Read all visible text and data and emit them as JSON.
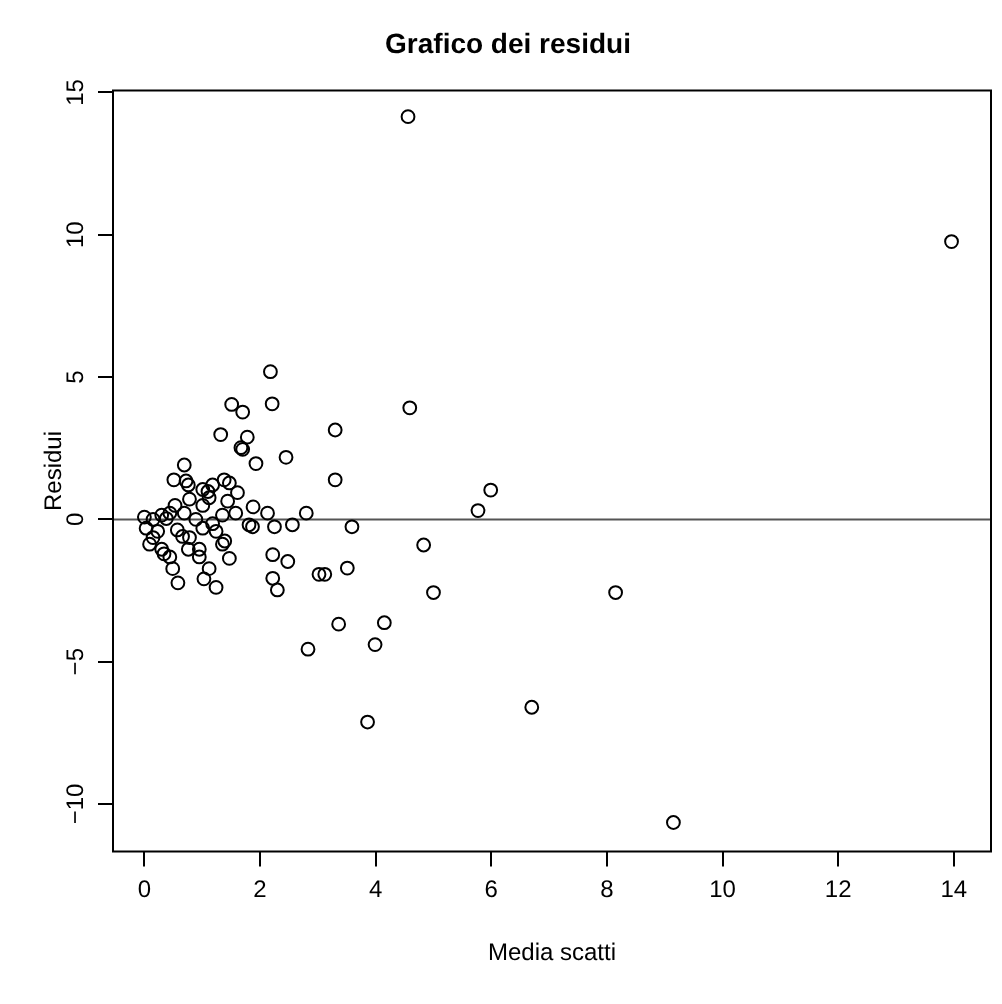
{
  "chart_data": {
    "type": "scatter",
    "title": "Grafico dei residui",
    "xlabel": "Media scatti",
    "ylabel": "Residui",
    "xlim": [
      -0.56,
      14.66
    ],
    "ylim": [
      -11.7,
      15.1
    ],
    "xticks": [
      0,
      2,
      4,
      6,
      8,
      10,
      12,
      14
    ],
    "yticks": [
      -10,
      -5,
      0,
      5,
      10,
      15
    ],
    "grid": false,
    "legend": false,
    "marker": "circle",
    "ref_lines": [
      {
        "axis": "y",
        "value": 0,
        "color": "#555555"
      }
    ],
    "series": [
      {
        "color": "#000000",
        "x": [
          4.56,
          13.96,
          4.59,
          3.3,
          3.3,
          5.99,
          5.77,
          3.59,
          4.83,
          3.51,
          5.0,
          8.15,
          3.36,
          4.15,
          3.99,
          6.7,
          3.86,
          9.15,
          2.18,
          1.51,
          1.7,
          2.21,
          1.32,
          1.78,
          1.67,
          1.7,
          1.93,
          2.45,
          0.69,
          0.51,
          0.72,
          0.76,
          1.01,
          1.1,
          1.18,
          1.38,
          1.47,
          1.61,
          1.12,
          0.78,
          0.53,
          1.44,
          1.88,
          2.13,
          2.8,
          1.58,
          1.35,
          1.01,
          0.69,
          0.44,
          0.3,
          0.0,
          0.15,
          0.03,
          0.23,
          0.38,
          0.89,
          1.18,
          1.81,
          1.87,
          2.25,
          2.56,
          0.57,
          1.01,
          1.24,
          0.66,
          0.15,
          0.78,
          0.09,
          1.35,
          1.39,
          0.3,
          0.76,
          0.95,
          0.34,
          0.44,
          0.95,
          1.47,
          2.22,
          2.48,
          0.49,
          1.12,
          3.02,
          3.12,
          0.58,
          1.03,
          1.24,
          2.22,
          2.3,
          2.83
        ],
        "values": [
          14.15,
          9.76,
          3.92,
          3.14,
          1.39,
          1.03,
          0.31,
          -0.26,
          -0.9,
          -1.71,
          -2.57,
          -2.57,
          -3.68,
          -3.63,
          -4.4,
          -6.6,
          -7.12,
          -10.65,
          5.19,
          4.04,
          3.77,
          4.06,
          2.98,
          2.89,
          2.52,
          2.46,
          1.96,
          2.18,
          1.91,
          1.39,
          1.35,
          1.21,
          1.05,
          0.98,
          1.21,
          1.39,
          1.28,
          0.94,
          0.76,
          0.71,
          0.49,
          0.64,
          0.44,
          0.22,
          0.22,
          0.22,
          0.15,
          0.49,
          0.22,
          0.22,
          0.15,
          0.08,
          0.0,
          -0.31,
          -0.42,
          0.03,
          0.0,
          -0.15,
          -0.19,
          -0.26,
          -0.26,
          -0.19,
          -0.37,
          -0.31,
          -0.42,
          -0.6,
          -0.64,
          -0.64,
          -0.87,
          -0.87,
          -0.76,
          -1.05,
          -1.05,
          -1.05,
          -1.21,
          -1.32,
          -1.32,
          -1.37,
          -1.24,
          -1.48,
          -1.73,
          -1.73,
          -1.93,
          -1.93,
          -2.23,
          -2.09,
          -2.39,
          -2.07,
          -2.48,
          -4.56
        ]
      }
    ]
  }
}
